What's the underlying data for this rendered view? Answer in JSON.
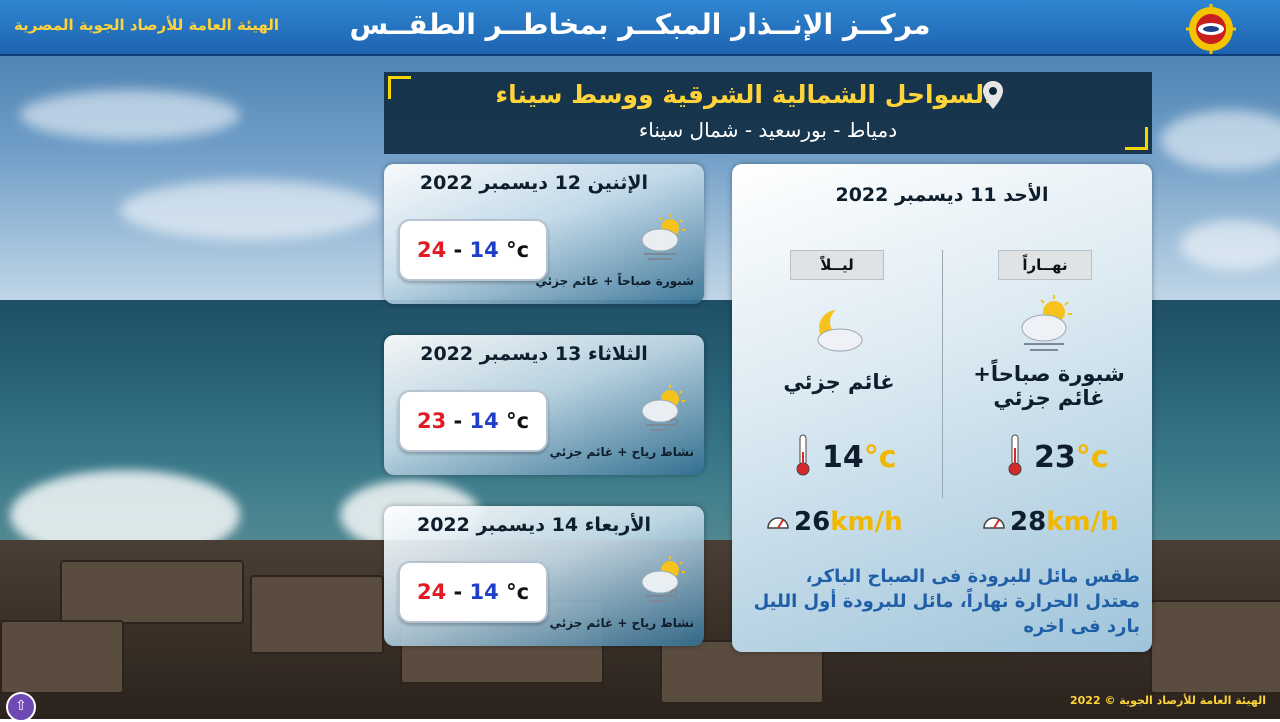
{
  "header": {
    "title": "مركــز الإنــذار المبكــر بمخاطــر الطقــس",
    "org_name": "الهيئة العامة للأرصاد الجوية المصرية"
  },
  "region": {
    "title": "السواحل الشمالية الشرقية ووسط سيناء",
    "subtitle": "دمياط - بورسعيد - شمال سيناء",
    "pin_icon": "location-pin-icon"
  },
  "day_cards": [
    {
      "date": "الإثنين 12 ديسمبر 2022",
      "min": "14",
      "sep": "-",
      "max": "24",
      "unit": "°c",
      "condition": "شبورة صباحاً + غائم جزئي",
      "icon": "fog-partly-cloudy-icon"
    },
    {
      "date": "الثلاثاء 13 ديسمبر 2022",
      "min": "14",
      "sep": "-",
      "max": "23",
      "unit": "°c",
      "condition": "نشاط رياح + غائم جزئي",
      "icon": "wind-partly-cloudy-icon"
    },
    {
      "date": "الأربعاء 14 ديسمبر 2022",
      "min": "14",
      "sep": "-",
      "max": "24",
      "unit": "°c",
      "condition": "نشاط رياح + غائم جزئي",
      "icon": "wind-partly-cloudy-icon"
    }
  ],
  "today": {
    "date": "الأحد 11 ديسمبر 2022",
    "day": {
      "label": "نهــاراً",
      "condition_line1": "شبورة صباحاً+",
      "condition_line2": "غائم جزئي",
      "temp": "23",
      "unit": "°c",
      "wind": "28",
      "wind_unit": "km/h",
      "icon": "fog-partly-cloudy-icon"
    },
    "night": {
      "label": "ليــلاً",
      "condition_line1": "غائم جزئي",
      "temp": "14",
      "unit": "°c",
      "wind": "26",
      "wind_unit": "km/h",
      "icon": "moon-cloud-icon"
    },
    "description_lines": [
      "طقس مائل للبرودة فى الصباح الباكر،",
      "معتدل الحرارة نهاراً، مائل للبرودة أول الليل",
      "بارد فى اخره"
    ]
  },
  "footer": {
    "copyright": "الهيئة العامة للأرصاد الجوية © 2022"
  },
  "colors": {
    "accent_yellow": "#ffd33a",
    "max_temp": "#e01b24",
    "min_temp": "#1f3fc9",
    "desc_blue": "#1f5fa8"
  }
}
